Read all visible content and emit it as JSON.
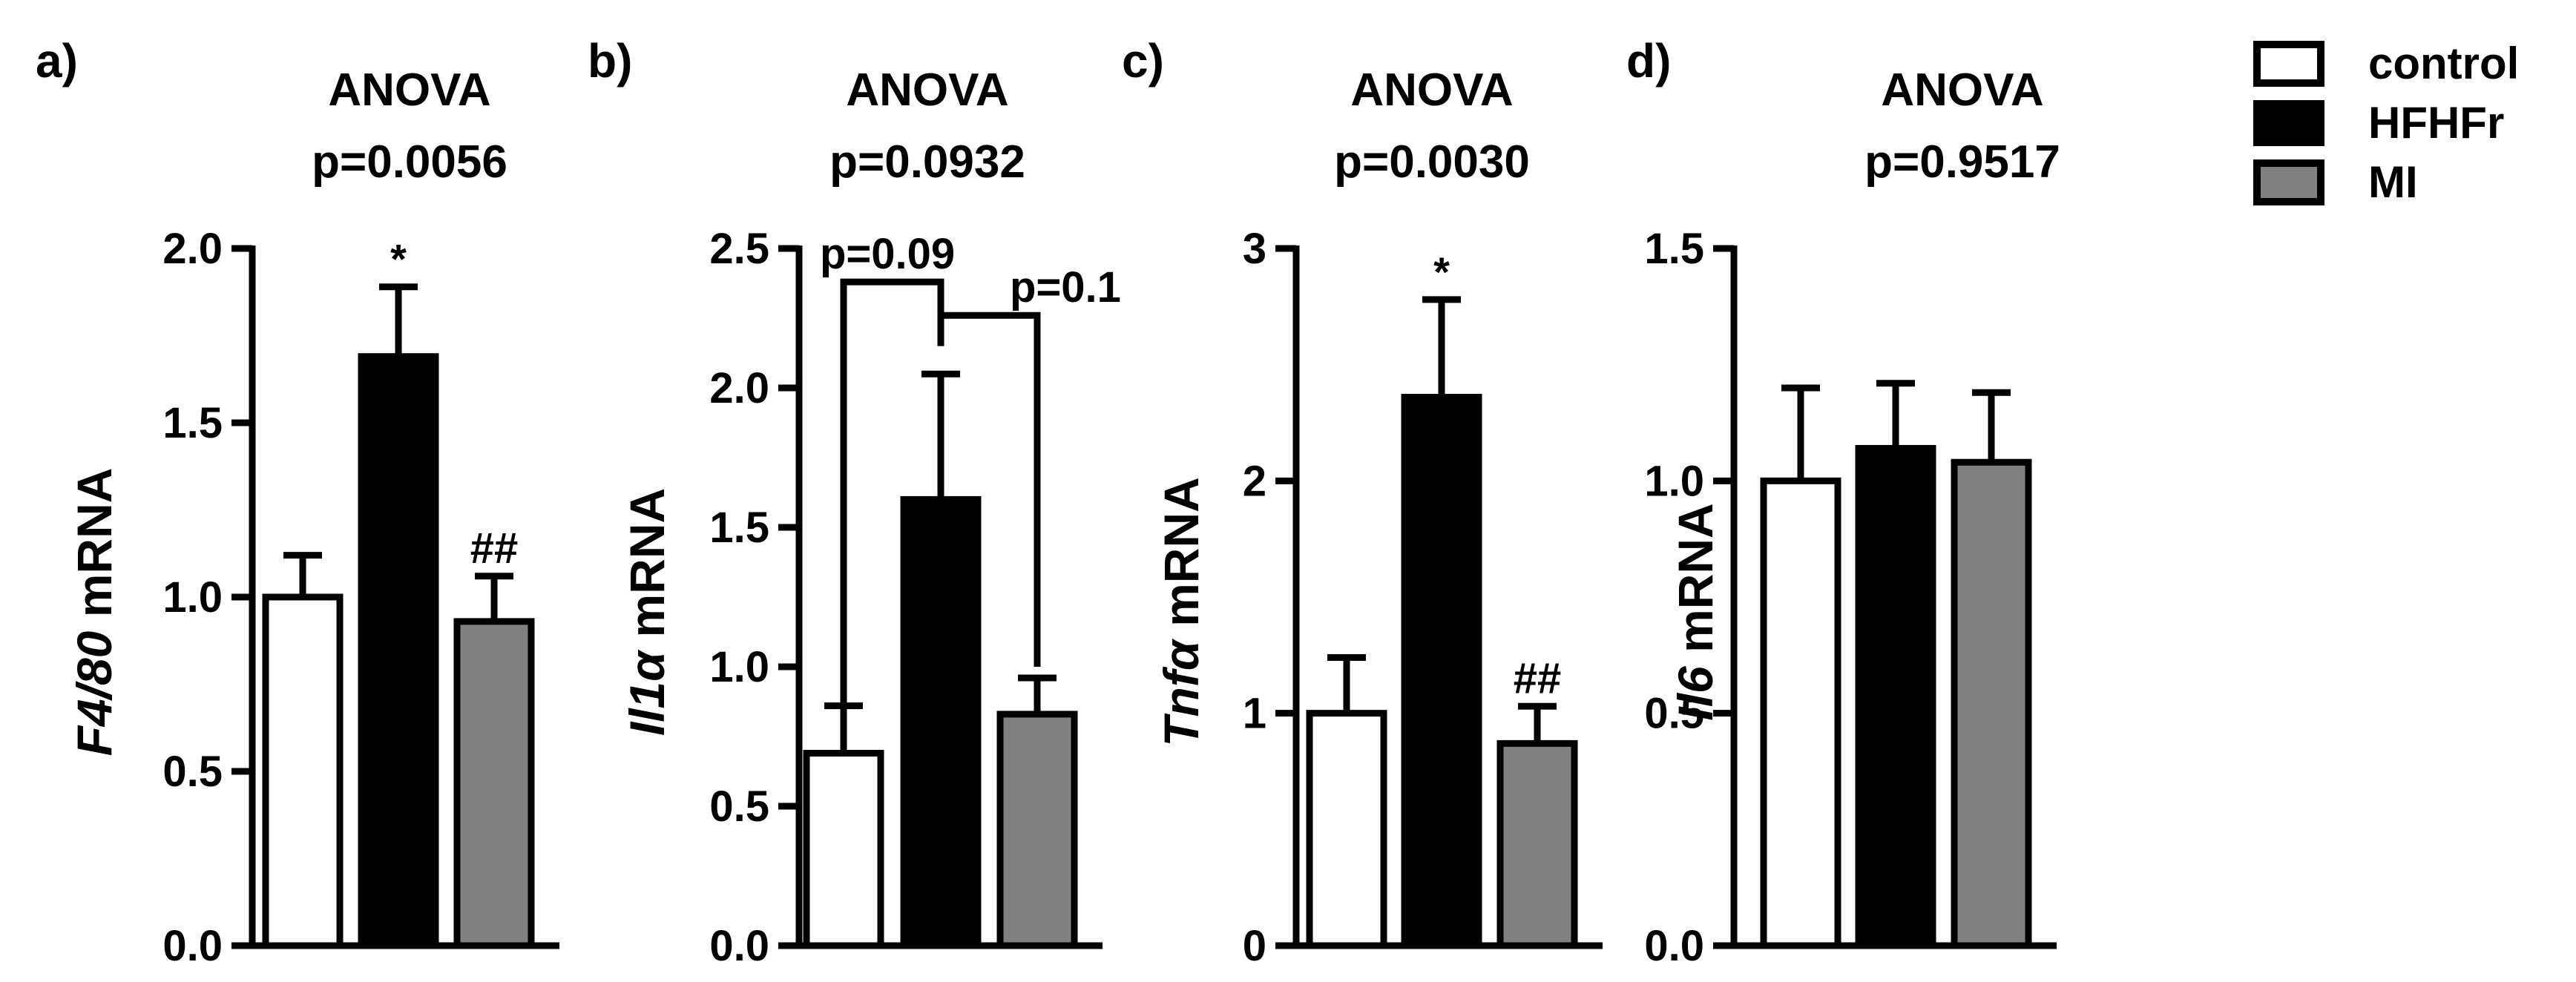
{
  "legend": [
    {
      "label": "control",
      "color": "#ffffff"
    },
    {
      "label": "HFHFr",
      "color": "#000000"
    },
    {
      "label": "MI",
      "color": "#808080"
    }
  ],
  "chart_data": [
    {
      "panel": "a)",
      "type": "bar",
      "title": [
        "ANOVA",
        "p=0.0056"
      ],
      "ylabel_italic": "F4/80",
      "ylabel_rest": " mRNA",
      "ylim": [
        0,
        2.0
      ],
      "ticks": [
        0,
        0.5,
        1.0,
        1.5,
        2.0
      ],
      "tick_labels": [
        "0.0",
        "0.5",
        "1.0",
        "1.5",
        "2.0"
      ],
      "categories": [
        "control",
        "HFHFr",
        "MI"
      ],
      "values": [
        1.0,
        1.69,
        0.93
      ],
      "errors": [
        0.12,
        0.2,
        0.13
      ],
      "bar_labels": [
        "",
        "*",
        "##"
      ],
      "brackets": []
    },
    {
      "panel": "b)",
      "type": "bar",
      "title": [
        "ANOVA",
        "p=0.0932"
      ],
      "ylabel_italic": "Il1α",
      "ylabel_rest": " mRNA",
      "ylim": [
        0,
        2.5
      ],
      "ticks": [
        0,
        0.5,
        1.0,
        1.5,
        2.0,
        2.5
      ],
      "tick_labels": [
        "0.0",
        "0.5",
        "1.0",
        "1.5",
        "2.0",
        "2.5"
      ],
      "categories": [
        "control",
        "HFHFr",
        "MI"
      ],
      "values": [
        0.69,
        1.6,
        0.83
      ],
      "errors": [
        0.17,
        0.45,
        0.13
      ],
      "bar_labels": [
        "",
        "",
        ""
      ],
      "brackets": [
        {
          "from": 0,
          "to": 1,
          "label": "p=0.09",
          "level": 2.38,
          "drop_from": 0.87,
          "drop_to": 2.25
        },
        {
          "from": 1,
          "to": 2,
          "label": "p=0.1",
          "level": 2.26,
          "drop_from": 2.15,
          "drop_to": 1.0
        }
      ]
    },
    {
      "panel": "c)",
      "type": "bar",
      "title": [
        "ANOVA",
        "p=0.0030"
      ],
      "ylabel_italic": "Tnfα",
      "ylabel_rest": " mRNA",
      "ylim": [
        0,
        3
      ],
      "ticks": [
        0,
        1,
        2,
        3
      ],
      "tick_labels": [
        "0",
        "1",
        "2",
        "3"
      ],
      "categories": [
        "control",
        "HFHFr",
        "MI"
      ],
      "values": [
        1.0,
        2.36,
        0.87
      ],
      "errors": [
        0.24,
        0.42,
        0.16
      ],
      "bar_labels": [
        "",
        "*",
        "##"
      ],
      "brackets": []
    },
    {
      "panel": "d)",
      "type": "bar",
      "title": [
        "ANOVA",
        "p=0.9517"
      ],
      "ylabel_italic": "Il6",
      "ylabel_rest": " mRNA",
      "ylim": [
        0,
        1.5
      ],
      "ticks": [
        0,
        0.5,
        1.0,
        1.5
      ],
      "tick_labels": [
        "0.0",
        "0.5",
        "1.0",
        "1.5"
      ],
      "categories": [
        "control",
        "HFHFr",
        "MI"
      ],
      "values": [
        1.0,
        1.07,
        1.04
      ],
      "errors": [
        0.2,
        0.14,
        0.15
      ],
      "bar_labels": [
        "",
        "",
        ""
      ],
      "brackets": []
    }
  ]
}
